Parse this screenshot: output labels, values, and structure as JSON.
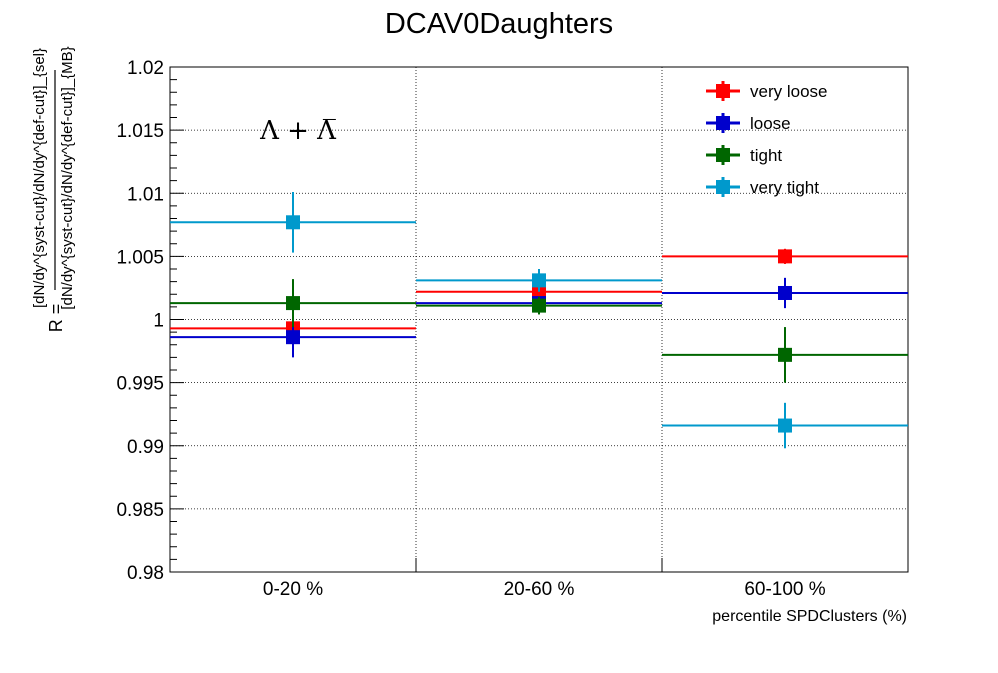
{
  "chart_data": {
    "type": "scatter",
    "title": "DCAV0Daughters",
    "annotation": "Λ + Λ̅",
    "xlabel": "percentile SPDClusters (%)",
    "ylabel": {
      "prefix": "R =",
      "numerator": "[dN/dy^{syst-cut}/dN/dy^{def-cut}]_{sel}",
      "denominator": "[dN/dy^{syst-cut}/dN/dy^{def-cut}]_{MB}"
    },
    "categories": [
      "0-20 %",
      "20-60 %",
      "60-100 %"
    ],
    "ylim": [
      0.98,
      1.02
    ],
    "yticks": [
      "0.98",
      "0.985",
      "0.99",
      "0.995",
      "1",
      "1.005",
      "1.01",
      "1.015",
      "1.02"
    ],
    "grid": true,
    "legend_position": "top-right",
    "series": [
      {
        "name": "very loose",
        "color": "#ff0000",
        "values": [
          0.9993,
          1.0022,
          1.005
        ],
        "errors": [
          0.0006,
          0.0004,
          0.0006
        ]
      },
      {
        "name": "loose",
        "color": "#0000cc",
        "values": [
          0.9986,
          1.0013,
          1.0021
        ],
        "errors": [
          0.0016,
          0.0005,
          0.0012
        ]
      },
      {
        "name": "tight",
        "color": "#006600",
        "values": [
          1.0013,
          1.0011,
          0.9972
        ],
        "errors": [
          0.0019,
          0.0007,
          0.0022
        ]
      },
      {
        "name": "very tight",
        "color": "#0099cc",
        "values": [
          1.0077,
          1.0031,
          0.9916
        ],
        "errors": [
          0.0024,
          0.0009,
          0.0018
        ]
      }
    ]
  }
}
